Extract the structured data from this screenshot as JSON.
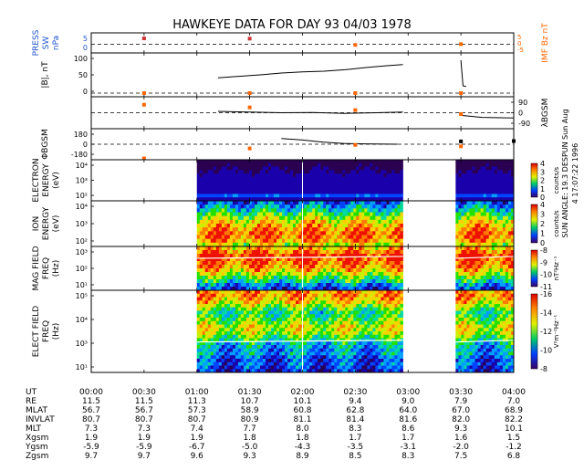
{
  "chart_data": {
    "type": "multi-panel-timeseries",
    "title": "HAWKEYE DATA FOR DAY  93 04/03 1978",
    "side_note": "4 17:07:22 1996",
    "side_info": "SUN ANGLE: 19.3 DESPUN Sun Aug",
    "time_axis": {
      "ticks": [
        "00:00",
        "00:30",
        "01:00",
        "01:30",
        "02:00",
        "02:30",
        "03:00",
        "03:30",
        "04:00"
      ],
      "range_hours": [
        0,
        4
      ]
    },
    "panels": [
      {
        "id": "press-imf",
        "left_labels": [
          "PRESS",
          "SW",
          "nPa"
        ],
        "right_labels": [
          "IMF Bz nT"
        ],
        "left_ticks": [
          "0",
          "5"
        ],
        "right_ticks": [
          "-5",
          "0",
          "5"
        ],
        "ylim": [
          -1,
          7
        ],
        "series": [
          {
            "color": "#cc3333",
            "points": [
              [
                0.5,
                4.8
              ],
              [
                1.5,
                4.7
              ]
            ]
          },
          {
            "color": "#ff6600",
            "points": [
              [
                2.5,
                2.2
              ],
              [
                3.5,
                2.5
              ]
            ]
          }
        ]
      },
      {
        "id": "b-mag",
        "left_labels": [
          "|B|, nT"
        ],
        "ticks": [
          "0",
          "50",
          "100"
        ],
        "ylim": [
          -10,
          110
        ],
        "series": [
          {
            "color": "#000000",
            "points": [
              [
                1.2,
                42
              ],
              [
                1.4,
                46
              ],
              [
                1.6,
                50
              ],
              [
                1.8,
                55
              ],
              [
                2.0,
                58
              ],
              [
                2.2,
                60
              ],
              [
                2.4,
                64
              ],
              [
                2.6,
                70
              ],
              [
                2.8,
                75
              ],
              [
                2.95,
                78
              ]
            ]
          },
          {
            "color": "#000000",
            "points": [
              [
                3.5,
                90
              ],
              [
                3.52,
                20
              ],
              [
                3.55,
                18
              ]
            ]
          }
        ],
        "markers": [
          [
            0.5,
            0
          ],
          [
            1.5,
            0
          ],
          [
            2.5,
            0
          ],
          [
            3.5,
            0
          ]
        ]
      },
      {
        "id": "lambda",
        "right_labels": [
          "λBGSM"
        ],
        "ticks": [
          "-90",
          "0",
          "90"
        ],
        "ylim": [
          -120,
          120
        ],
        "series": [
          {
            "color": "#000000",
            "points": [
              [
                1.2,
                10
              ],
              [
                1.5,
                5
              ],
              [
                1.8,
                0
              ],
              [
                2.1,
                2
              ],
              [
                2.4,
                -5
              ],
              [
                2.7,
                0
              ],
              [
                2.95,
                5
              ]
            ]
          },
          {
            "color": "#000000",
            "points": [
              [
                3.5,
                -20
              ],
              [
                3.7,
                -35
              ],
              [
                4.0,
                -40
              ]
            ]
          }
        ],
        "markers": [
          [
            0.5,
            60
          ],
          [
            1.5,
            40
          ],
          [
            2.5,
            20
          ],
          [
            3.5,
            -10
          ]
        ]
      },
      {
        "id": "phi",
        "left_labels": [
          "ΦBGSM"
        ],
        "ticks": [
          "-180",
          "0",
          "180"
        ],
        "ylim": [
          -220,
          220
        ],
        "series": [
          {
            "color": "#000000",
            "points": [
              [
                1.8,
                80
              ],
              [
                2.0,
                60
              ],
              [
                2.2,
                30
              ],
              [
                2.4,
                10
              ],
              [
                2.6,
                5
              ],
              [
                2.9,
                0
              ]
            ]
          },
          {
            "color": "#000000",
            "points": [
              [
                3.5,
                40
              ],
              [
                4.0,
                45
              ]
            ]
          }
        ],
        "markers": [
          [
            0.5,
            -200
          ],
          [
            1.5,
            -60
          ],
          [
            2.5,
            -10
          ],
          [
            3.5,
            -30
          ]
        ]
      },
      {
        "id": "electron",
        "left_labels": [
          "ELECTRON",
          "ENERGY",
          "(eV)"
        ],
        "ticks": [
          "10²",
          "10³",
          "10⁴"
        ],
        "colorbar_label": "counts/s",
        "colorbar_ticks": [
          "0",
          "1",
          "2",
          "3",
          "4"
        ],
        "data_intervals": [
          [
            1.0,
            2.95
          ],
          [
            3.45,
            4.0
          ]
        ],
        "cell_rows": [
          0.6,
          0.75,
          0.72,
          0.78,
          0.82,
          0.8,
          0.7,
          0.55,
          0.4,
          0.3,
          0.2,
          0.15
        ]
      },
      {
        "id": "ion",
        "left_labels": [
          "ION",
          "ENERGY",
          "(eV)"
        ],
        "ticks": [
          "10²",
          "10³",
          "10⁴"
        ],
        "colorbar_label": "counts/s",
        "colorbar_ticks": [
          "0",
          "1",
          "2",
          "3",
          "4"
        ],
        "data_intervals": [
          [
            1.0,
            2.95
          ],
          [
            3.45,
            4.0
          ]
        ],
        "cell_rows": [
          0.7,
          0.85,
          0.9,
          0.92,
          0.88,
          0.8,
          0.75,
          0.65,
          0.55,
          0.45,
          0.35,
          0.25
        ]
      },
      {
        "id": "mag-field",
        "left_labels": [
          "MAG FIELD",
          "FREQ",
          "(Hz)"
        ],
        "ticks": [
          "10¹",
          "10²",
          "10³"
        ],
        "colorbar_label": "nT²Hz⁻¹",
        "colorbar_ticks": [
          "-11",
          "-10",
          "-9",
          "-8"
        ],
        "data_intervals": [
          [
            1.0,
            2.95
          ],
          [
            3.45,
            4.0
          ]
        ],
        "cell_rows": [
          0.2,
          0.3,
          0.45,
          0.55,
          0.68,
          0.78,
          0.85,
          0.9,
          0.95,
          1.0,
          0.9,
          0.8
        ]
      },
      {
        "id": "elect-field",
        "left_labels": [
          "ELECT FIELD",
          "FREQ",
          "(Hz)"
        ],
        "ticks": [
          "10¹",
          "10³",
          "10⁴",
          "10⁵"
        ],
        "colorbar_label": "V²m⁻²Hz⁻¹",
        "colorbar_ticks": [
          "-8",
          "-10",
          "-12",
          "-14",
          "-16"
        ],
        "data_intervals": [
          [
            1.0,
            2.95
          ],
          [
            3.45,
            4.0
          ]
        ],
        "cell_rows": [
          0.15,
          0.2,
          0.25,
          0.2,
          0.25,
          0.35,
          0.3,
          0.35,
          0.4,
          0.5,
          0.55,
          0.65,
          0.68,
          0.7,
          0.62,
          0.55,
          0.5,
          0.48,
          0.55,
          0.65,
          0.75,
          0.8,
          0.85,
          0.82
        ]
      }
    ],
    "ephemeris": {
      "rows": [
        {
          "label": "UT",
          "values": [
            "00:00",
            "00:30",
            "01:00",
            "01:30",
            "02:00",
            "02:30",
            "03:00",
            "03:30",
            "04:00"
          ]
        },
        {
          "label": "RE",
          "values": [
            "11.5",
            "11.5",
            "11.3",
            "10.7",
            "10.1",
            "9.4",
            "9.0",
            "7.9",
            "7.0"
          ]
        },
        {
          "label": "MLAT",
          "values": [
            "56.7",
            "56.7",
            "57.3",
            "58.9",
            "60.8",
            "62.8",
            "64.0",
            "67.0",
            "68.9"
          ]
        },
        {
          "label": "INVLAT",
          "values": [
            "80.7",
            "80.7",
            "80.7",
            "80.9",
            "81.1",
            "81.4",
            "81.6",
            "82.0",
            "82.2"
          ]
        },
        {
          "label": "MLT",
          "values": [
            "7.3",
            "7.3",
            "7.4",
            "7.7",
            "8.0",
            "8.3",
            "8.6",
            "9.3",
            "10.1"
          ]
        },
        {
          "label": "Xgsm",
          "values": [
            "1.9",
            "1.9",
            "1.9",
            "1.8",
            "1.8",
            "1.7",
            "1.7",
            "1.6",
            "1.5"
          ]
        },
        {
          "label": "Ygsm",
          "values": [
            "-5.9",
            "-5.9",
            "-6.7",
            "-5.0",
            "-4.3",
            "-3.5",
            "-3.1",
            "-2.0",
            "-1.2"
          ]
        },
        {
          "label": "Zgsm",
          "values": [
            "9.7",
            "9.7",
            "9.6",
            "9.3",
            "8.9",
            "8.5",
            "8.3",
            "7.5",
            "6.8"
          ]
        }
      ]
    }
  }
}
